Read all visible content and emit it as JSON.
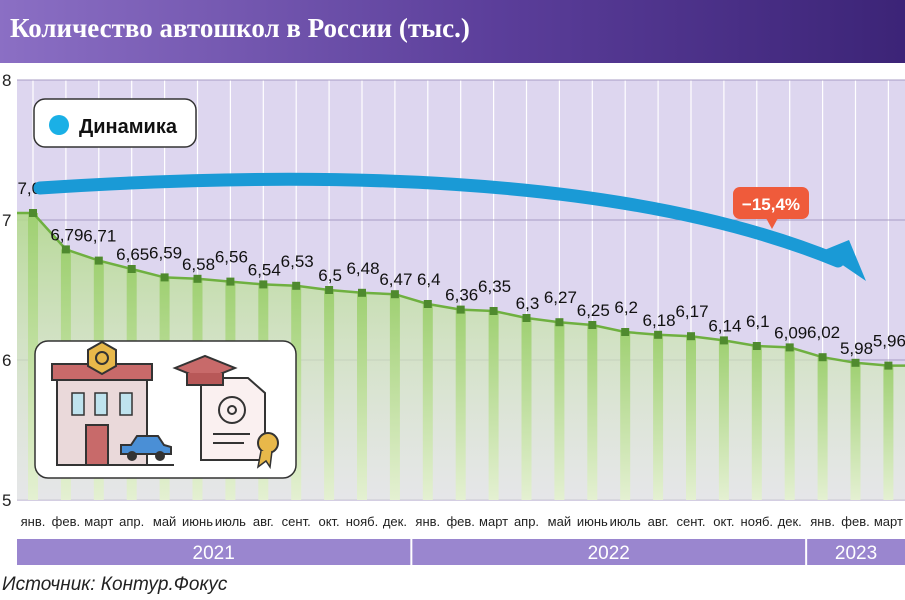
{
  "title": "Количество автошкол в России (тыс.)",
  "source": "Источник: Контур.Фокус",
  "legend": {
    "label": "Динамика",
    "marker_color": "#1ab0e6"
  },
  "annotation": {
    "label": "−15,4%",
    "arrow_color": "#1a9ad6",
    "badge_color": "#ef5b3b"
  },
  "colors": {
    "title_bg_start": "#8b6fc4",
    "title_bg_end": "#3c2477",
    "plot_bg": "#ddd6ef",
    "bar_top": "#9fd072",
    "line": "#6fb040",
    "marker": "#4f8a2e",
    "year_band": "#9a86cf"
  },
  "chart_data": {
    "type": "line",
    "title": "Количество автошкол в России (тыс.)",
    "x": [
      "янв.",
      "фев.",
      "март",
      "апр.",
      "май",
      "июнь",
      "июль",
      "авг.",
      "сент.",
      "окт.",
      "нояб.",
      "дек.",
      "янв.",
      "фев.",
      "март",
      "апр.",
      "май",
      "июнь",
      "июль",
      "авг.",
      "сент.",
      "окт.",
      "нояб.",
      "дек.",
      "янв.",
      "фев.",
      "март"
    ],
    "years": [
      {
        "label": "2021",
        "months": 12
      },
      {
        "label": "2022",
        "months": 12
      },
      {
        "label": "2023",
        "months": 3
      }
    ],
    "series": [
      {
        "name": "Динамика",
        "values": [
          7.05,
          6.79,
          6.71,
          6.65,
          6.59,
          6.58,
          6.56,
          6.54,
          6.53,
          6.5,
          6.48,
          6.47,
          6.4,
          6.36,
          6.35,
          6.3,
          6.27,
          6.25,
          6.2,
          6.18,
          6.17,
          6.14,
          6.1,
          6.09,
          6.02,
          5.98,
          5.96
        ],
        "labels": [
          "7,05",
          "6,79",
          "6,71",
          "6,65",
          "6,59",
          "6,58",
          "6,56",
          "6,54",
          "6,53",
          "6,5",
          "6,48",
          "6,47",
          "6,4",
          "6,36",
          "6,35",
          "6,3",
          "6,27",
          "6,25",
          "6,2",
          "6,18",
          "6,17",
          "6,14",
          "6,1",
          "6,09",
          "6,02",
          "5,98",
          "5,96"
        ]
      }
    ],
    "ylim": [
      5,
      8
    ],
    "yticks": [
      5,
      6,
      7,
      8
    ],
    "ytick_labels": [
      "5",
      "6",
      "7",
      "8"
    ],
    "grid": true,
    "legend_position": "top-left"
  }
}
